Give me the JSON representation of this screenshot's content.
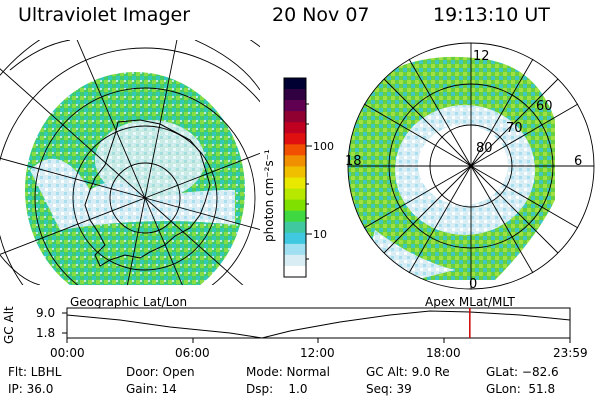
{
  "header": {
    "title": "Ultraviolet Imager",
    "date": "20 Nov 07",
    "time": "19:13:10 UT"
  },
  "colorbar": {
    "unit": "photon cm⁻²s⁻¹",
    "ticks": [
      "100",
      "10"
    ],
    "colors": [
      "#000033",
      "#300040",
      "#600050",
      "#900030",
      "#c00020",
      "#e01010",
      "#f05000",
      "#f09000",
      "#f0c000",
      "#e8e800",
      "#b8e800",
      "#80e000",
      "#40d840",
      "#40c8a0",
      "#40c8e0",
      "#a0e0f0",
      "#d8eef4",
      "#ffffff"
    ]
  },
  "right_map": {
    "mlt_labels": [
      "12",
      "18",
      "6",
      "0"
    ],
    "lat_labels": [
      "60",
      "70",
      "80"
    ]
  },
  "timeline": {
    "label_geographic": "Geographic Lat/Lon",
    "label_apex": "Apex MLat/MLT",
    "y_axis_title": "GC Alt",
    "y_ticks": [
      "9.0",
      "1.8"
    ],
    "time_ticks": [
      "00:00",
      "06:00",
      "12:00",
      "18:00",
      "23:59"
    ],
    "marker_time_hours": 19.22,
    "marker_color": "#d00000"
  },
  "info": {
    "row1": [
      "Flt: LBHL",
      "Door: Open",
      "Mode: Normal",
      "GC Alt: 9.0 Re",
      "GLat: −82.6"
    ],
    "row2": [
      "IP: 36.0",
      "Gain: 14",
      "Dsp:    1.0",
      "Seq: 39",
      "GLon:  51.8"
    ]
  }
}
